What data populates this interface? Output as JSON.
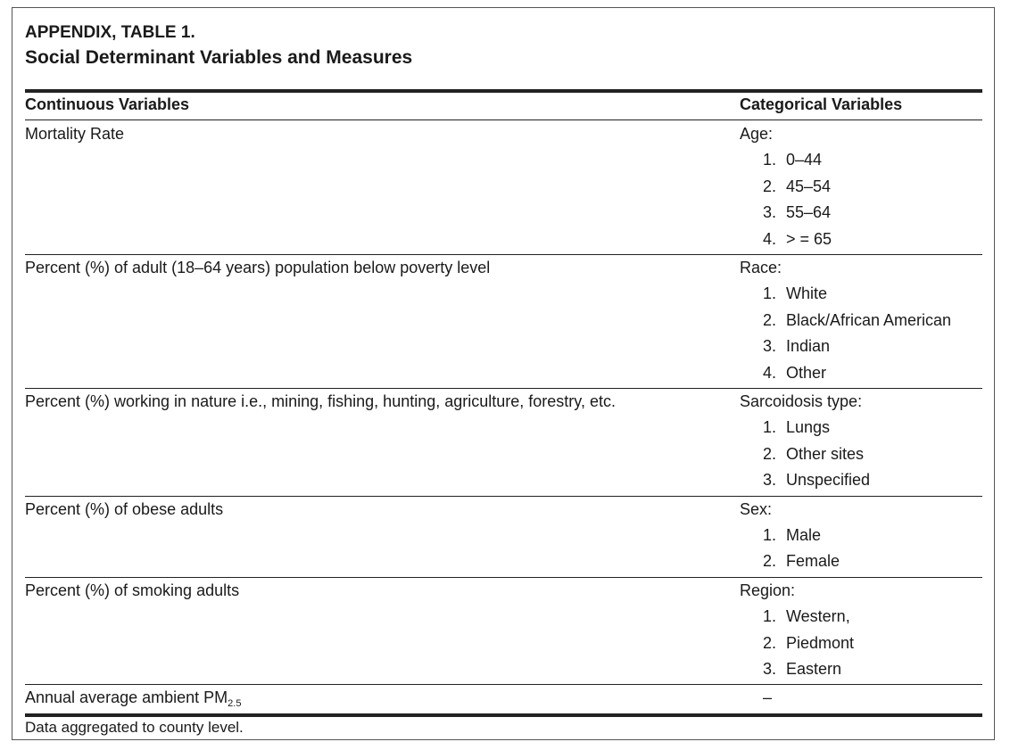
{
  "header": {
    "label": "APPENDIX, TABLE 1.",
    "title": "Social Determinant Variables and Measures"
  },
  "table": {
    "columns": [
      "Continuous Variables",
      "Categorical Variables"
    ],
    "rows": [
      {
        "continuous": {
          "text": "Mortality Rate"
        },
        "categorical": {
          "name": "Age:",
          "items": [
            {
              "n": "1.",
              "text": "0–44"
            },
            {
              "n": "2.",
              "text": "45–54"
            },
            {
              "n": "3.",
              "text": "55–64"
            },
            {
              "n": "4.",
              "text": "> = 65"
            }
          ]
        }
      },
      {
        "continuous": {
          "text": "Percent (%) of adult (18–64 years) population below poverty level"
        },
        "categorical": {
          "name": "Race:",
          "items": [
            {
              "n": "1.",
              "text": "White"
            },
            {
              "n": "2.",
              "text": "Black/African American"
            },
            {
              "n": "3.",
              "text": "Indian"
            },
            {
              "n": "4.",
              "text": "Other"
            }
          ]
        }
      },
      {
        "continuous": {
          "text": "Percent (%) working in nature i.e., mining, fishing, hunting, agriculture, forestry, etc."
        },
        "categorical": {
          "name": "Sarcoidosis type:",
          "items": [
            {
              "n": "1.",
              "text": "Lungs"
            },
            {
              "n": "2.",
              "text": "Other sites"
            },
            {
              "n": "3.",
              "text": "Unspecified"
            }
          ]
        }
      },
      {
        "continuous": {
          "text": "Percent (%) of obese adults"
        },
        "categorical": {
          "name": "Sex:",
          "items": [
            {
              "n": "1.",
              "text": "Male"
            },
            {
              "n": "2.",
              "text": "Female"
            }
          ]
        }
      },
      {
        "continuous": {
          "text": "Percent (%) of smoking adults"
        },
        "categorical": {
          "name": "Region:",
          "items": [
            {
              "n": "1.",
              "text": "Western,"
            },
            {
              "n": "2.",
              "text": "Piedmont"
            },
            {
              "n": "3.",
              "text": "Eastern"
            }
          ]
        }
      },
      {
        "continuous": {
          "text": "Annual average ambient PM",
          "sub": "2.5"
        },
        "categorical": {
          "name": "–"
        }
      }
    ]
  },
  "footnote": "Data aggregated to county level."
}
